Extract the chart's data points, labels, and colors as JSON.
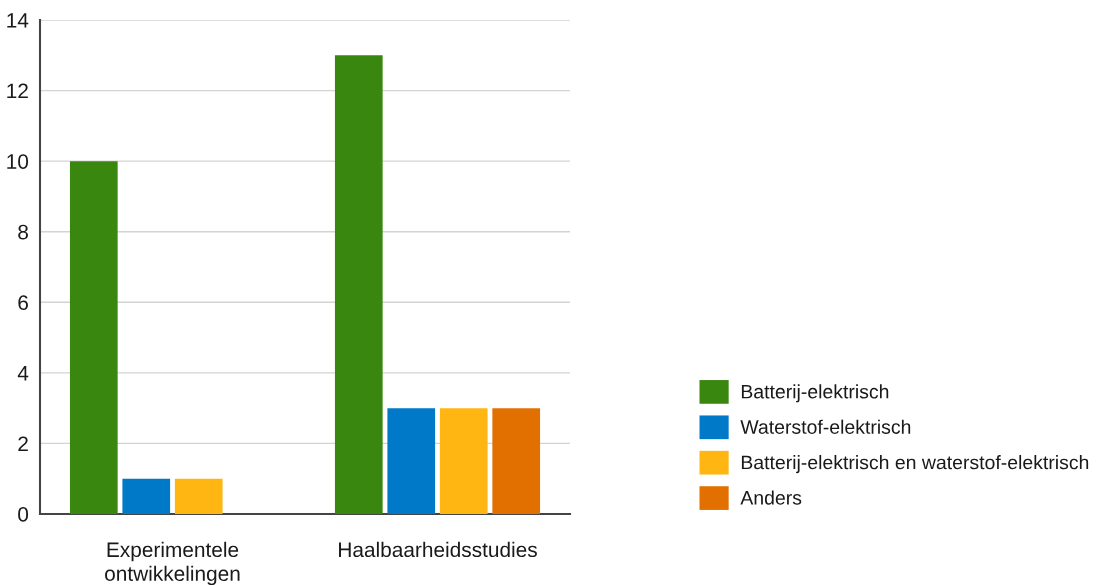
{
  "chart_data": {
    "type": "bar",
    "categories": [
      "Experimentele ontwikkelingen",
      "Haalbaarheidsstudies"
    ],
    "series": [
      {
        "name": "Batterij-elektrisch",
        "color": "#3a870f",
        "values": [
          10,
          13
        ]
      },
      {
        "name": "Waterstof-elektrisch",
        "color": "#0079c8",
        "values": [
          1,
          3
        ]
      },
      {
        "name": "Batterij-elektrisch en waterstof-elektrisch",
        "color": "#ffb612",
        "values": [
          1,
          3
        ]
      },
      {
        "name": "Anders",
        "color": "#e17000",
        "values": [
          0,
          3
        ]
      }
    ],
    "ylim": [
      0,
      14
    ],
    "yticks": [
      0,
      2,
      4,
      6,
      8,
      10,
      12,
      14
    ],
    "grid": "y",
    "legend": "right"
  }
}
